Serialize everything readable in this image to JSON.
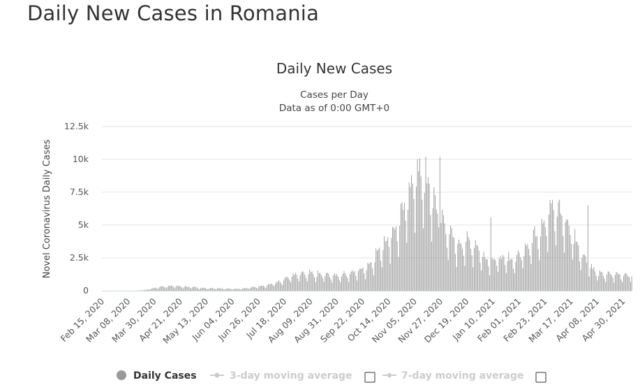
{
  "page": {
    "title": "Daily New Cases in Romania"
  },
  "chart_data": {
    "type": "bar",
    "title": "Daily New Cases",
    "subtitle": "Cases per Day",
    "subtitle2": "Data as of 0:00 GMT+0",
    "ylabel": "Novel Coronavirus Daily Cases",
    "ylim": [
      0,
      12500
    ],
    "yticks": [
      0,
      2500,
      5000,
      7500,
      10000,
      12500
    ],
    "ytick_labels": [
      "0",
      "2.5k",
      "5k",
      "7.5k",
      "10k",
      "12.5k"
    ],
    "x_start": "Feb 15, 2020",
    "x_end": "May 08, 2021",
    "xtick_labels": [
      "Feb 15, 2020",
      "Mar 08, 2020",
      "Mar 30, 2020",
      "Apr 21, 2020",
      "May 13, 2020",
      "Jun 04, 2020",
      "Jun 26, 2020",
      "Jul 18, 2020",
      "Aug 09, 2020",
      "Aug 31, 2020",
      "Sep 22, 2020",
      "Oct 14, 2020",
      "Nov 05, 2020",
      "Nov 27, 2020",
      "Dec 19, 2020",
      "Jan 10, 2021",
      "Feb 01, 2021",
      "Feb 23, 2021",
      "Mar 17, 2021",
      "Apr 08, 2021",
      "Apr 30, 2021"
    ],
    "grid": true,
    "series": [
      {
        "name": "Daily Cases",
        "color": "#999999",
        "weekly_avg_values": [
          0,
          0,
          0,
          0,
          5,
          40,
          170,
          280,
          350,
          330,
          300,
          250,
          200,
          180,
          170,
          150,
          140,
          170,
          250,
          330,
          420,
          600,
          900,
          1150,
          1200,
          1250,
          1200,
          1150,
          1100,
          1200,
          1300,
          1500,
          1800,
          2600,
          3600,
          4300,
          5200,
          7400,
          8800,
          8100,
          6600,
          5200,
          4000,
          3400,
          3600,
          3400,
          2500,
          2300,
          2400,
          2300,
          2400,
          3200,
          3900,
          4800,
          5900,
          6000,
          5000,
          3800,
          2600,
          1700,
          1200
        ],
        "peaks": [
          {
            "x": "Nov 14, 2020",
            "y": 10200
          },
          {
            "x": "Nov 26, 2020",
            "y": 10200
          },
          {
            "x": "Jan 08, 2021",
            "y": 5600
          },
          {
            "x": "Mar 31, 2021",
            "y": 6500
          }
        ]
      }
    ],
    "legend": {
      "placement": "bottom",
      "items": [
        {
          "label": "Daily Cases",
          "active": true
        },
        {
          "label": "3-day moving average",
          "active": false
        },
        {
          "label": "7-day moving average",
          "active": false
        }
      ]
    }
  }
}
